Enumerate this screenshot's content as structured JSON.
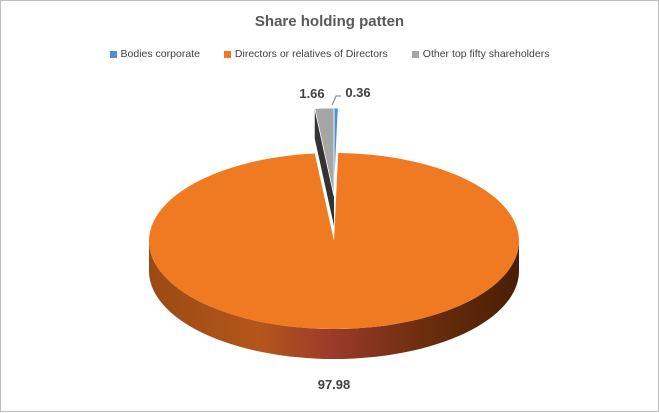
{
  "chart_data": {
    "type": "pie",
    "style": "3d-exploded",
    "title": "Share holding patten",
    "legend_position": "top",
    "categories": [
      "Bodies corporate",
      "Directors or relatives of Directors",
      "Other top fifty shareholders"
    ],
    "values": [
      0.36,
      97.98,
      1.66
    ],
    "labels": [
      "0.36",
      "97.98",
      "1.66"
    ],
    "colors": [
      "#4f8fd0",
      "#f07a22",
      "#a6a6a6"
    ],
    "exploded": [
      true,
      false,
      true
    ]
  }
}
